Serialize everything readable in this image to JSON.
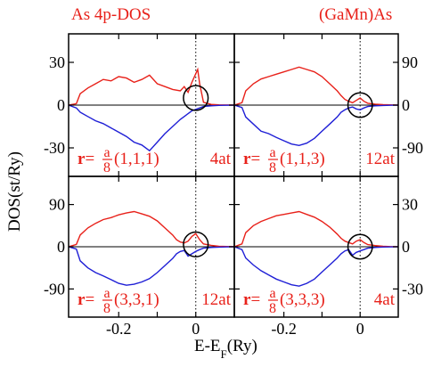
{
  "header": {
    "left_label": "As 4p-DOS",
    "right_label": "(GaMn)As"
  },
  "axes": {
    "xlabel_main": "E-E",
    "xlabel_sub": "F",
    "xlabel_unit": "(Ry)",
    "ylabel": "DOS(st/Ry)"
  },
  "colors": {
    "up": "#e8211a",
    "down": "#1f1fd6",
    "text": "#e8211a",
    "axis": "#000000"
  },
  "chart_data": {
    "type": "line",
    "xlim": [
      -0.33,
      0.1
    ],
    "xticks": [
      -0.2,
      -0.1,
      0
    ],
    "xtick_labels": [
      "-0.2",
      "-0.1",
      "0"
    ],
    "panels": [
      {
        "id": "tl",
        "yticks": [
          30,
          0,
          -30
        ],
        "ytick_labels": [
          "30",
          "0",
          "-30"
        ],
        "ylim": [
          -50,
          50
        ],
        "y_side": "left",
        "r_prefix": "r",
        "r_eq": "=",
        "r_num": "a",
        "r_den": "8",
        "r_vec": "(1,1,1)",
        "atoms": "4at",
        "circle": {
          "cx": 0.0,
          "cy": 5,
          "r": 0.032
        },
        "series": [
          {
            "spin": "up",
            "x": [
              -0.33,
              -0.31,
              -0.3,
              -0.28,
              -0.26,
              -0.24,
              -0.22,
              -0.2,
              -0.18,
              -0.16,
              -0.14,
              -0.12,
              -0.1,
              -0.08,
              -0.06,
              -0.04,
              -0.03,
              -0.02,
              -0.01,
              0.0,
              0.005,
              0.01,
              0.02,
              0.04,
              0.06,
              0.08,
              0.1
            ],
            "y": [
              0,
              1,
              8,
              12,
              15,
              18,
              17,
              20,
              19,
              16,
              18,
              21,
              15,
              13,
              11,
              10,
              13,
              9,
              16,
              22,
              25,
              15,
              2,
              0.5,
              0.2,
              0.1,
              0
            ]
          },
          {
            "spin": "down",
            "x": [
              -0.33,
              -0.31,
              -0.3,
              -0.28,
              -0.26,
              -0.24,
              -0.22,
              -0.2,
              -0.18,
              -0.16,
              -0.14,
              -0.12,
              -0.1,
              -0.08,
              -0.06,
              -0.04,
              -0.03,
              -0.02,
              -0.01,
              0.0,
              0.01,
              0.02,
              0.04,
              0.06,
              0.08,
              0.1
            ],
            "y": [
              0,
              -2,
              -5,
              -8,
              -11,
              -13,
              -16,
              -19,
              -22,
              -26,
              -28,
              -32,
              -26,
              -20,
              -15,
              -10,
              -8,
              -6,
              -4,
              -3,
              -2,
              -1,
              -0.5,
              -0.2,
              -0.1,
              0
            ]
          }
        ]
      },
      {
        "id": "tr",
        "yticks": [
          90,
          0,
          -90
        ],
        "ytick_labels": [
          "90",
          "0",
          "-90"
        ],
        "ylim": [
          -150,
          150
        ],
        "y_side": "right",
        "r_prefix": "r",
        "r_eq": "=",
        "r_num": "a",
        "r_den": "8",
        "r_vec": "(1,1,3)",
        "atoms": "12at",
        "circle": {
          "cx": 0.0,
          "cy": 0,
          "r": 0.032
        },
        "series": [
          {
            "spin": "up",
            "x": [
              -0.33,
              -0.31,
              -0.3,
              -0.28,
              -0.26,
              -0.24,
              -0.22,
              -0.2,
              -0.18,
              -0.16,
              -0.14,
              -0.12,
              -0.1,
              -0.08,
              -0.06,
              -0.05,
              -0.04,
              -0.03,
              -0.02,
              -0.01,
              0.0,
              0.01,
              0.02,
              0.04,
              0.06,
              0.08,
              0.1
            ],
            "y": [
              0,
              5,
              30,
              45,
              55,
              60,
              65,
              70,
              75,
              80,
              75,
              70,
              60,
              45,
              30,
              20,
              12,
              8,
              5,
              10,
              15,
              8,
              4,
              2,
              1,
              0.5,
              0
            ]
          },
          {
            "spin": "down",
            "x": [
              -0.33,
              -0.31,
              -0.3,
              -0.28,
              -0.26,
              -0.24,
              -0.22,
              -0.2,
              -0.18,
              -0.16,
              -0.14,
              -0.12,
              -0.1,
              -0.08,
              -0.06,
              -0.05,
              -0.04,
              -0.03,
              -0.02,
              -0.01,
              0.0,
              0.01,
              0.02,
              0.04,
              0.06,
              0.08,
              0.1
            ],
            "y": [
              0,
              -5,
              -25,
              -40,
              -55,
              -60,
              -68,
              -75,
              -82,
              -85,
              -80,
              -70,
              -55,
              -40,
              -25,
              -15,
              -10,
              -6,
              -4,
              -8,
              -10,
              -6,
              -3,
              -1.5,
              -0.8,
              -0.3,
              0
            ]
          }
        ]
      },
      {
        "id": "bl",
        "yticks": [
          90,
          0,
          -90
        ],
        "ytick_labels": [
          "90",
          "0",
          "-90"
        ],
        "ylim": [
          -150,
          150
        ],
        "y_side": "left",
        "r_prefix": "r",
        "r_eq": "=",
        "r_num": "a",
        "r_den": "8",
        "r_vec": "(3,3,1)",
        "atoms": "12at",
        "circle": {
          "cx": 0.0,
          "cy": 5,
          "r": 0.032
        },
        "series": [
          {
            "spin": "up",
            "x": [
              -0.33,
              -0.31,
              -0.3,
              -0.28,
              -0.26,
              -0.24,
              -0.22,
              -0.2,
              -0.18,
              -0.16,
              -0.14,
              -0.12,
              -0.1,
              -0.08,
              -0.06,
              -0.05,
              -0.04,
              -0.03,
              -0.02,
              -0.01,
              0.0,
              0.01,
              0.02,
              0.04,
              0.06,
              0.08,
              0.1
            ],
            "y": [
              0,
              5,
              25,
              40,
              50,
              58,
              62,
              68,
              72,
              75,
              70,
              65,
              55,
              40,
              25,
              15,
              10,
              8,
              12,
              22,
              28,
              15,
              6,
              3,
              1,
              0.5,
              0
            ]
          },
          {
            "spin": "down",
            "x": [
              -0.33,
              -0.31,
              -0.3,
              -0.28,
              -0.26,
              -0.24,
              -0.22,
              -0.2,
              -0.18,
              -0.16,
              -0.14,
              -0.12,
              -0.1,
              -0.08,
              -0.06,
              -0.05,
              -0.04,
              -0.03,
              -0.02,
              -0.01,
              0.0,
              0.01,
              0.02,
              0.04,
              0.06,
              0.08,
              0.1
            ],
            "y": [
              0,
              -5,
              -30,
              -45,
              -55,
              -62,
              -70,
              -78,
              -82,
              -80,
              -75,
              -68,
              -55,
              -40,
              -25,
              -15,
              -10,
              -8,
              -20,
              -15,
              -10,
              -6,
              -3,
              -1.5,
              -0.8,
              -0.3,
              0
            ]
          }
        ]
      },
      {
        "id": "br",
        "yticks": [
          30,
          0,
          -30
        ],
        "ytick_labels": [
          "30",
          "0",
          "-30"
        ],
        "ylim": [
          -50,
          50
        ],
        "y_side": "right",
        "r_prefix": "r",
        "r_eq": "=",
        "r_num": "a",
        "r_den": "8",
        "r_vec": "(3,3,3)",
        "atoms": "4at",
        "circle": {
          "cx": 0.0,
          "cy": 0,
          "r": 0.032
        },
        "series": [
          {
            "spin": "up",
            "x": [
              -0.33,
              -0.31,
              -0.3,
              -0.28,
              -0.26,
              -0.24,
              -0.22,
              -0.2,
              -0.18,
              -0.16,
              -0.14,
              -0.12,
              -0.1,
              -0.08,
              -0.06,
              -0.05,
              -0.04,
              -0.03,
              -0.02,
              -0.01,
              0.0,
              0.01,
              0.02,
              0.04,
              0.06,
              0.08,
              0.1
            ],
            "y": [
              0,
              2,
              10,
              15,
              18,
              20,
              22,
              23,
              24,
              25,
              23,
              21,
              18,
              14,
              9,
              6,
              4,
              3,
              2,
              4,
              5,
              3,
              1.5,
              0.8,
              0.3,
              0.1,
              0
            ]
          },
          {
            "spin": "down",
            "x": [
              -0.33,
              -0.31,
              -0.3,
              -0.28,
              -0.26,
              -0.24,
              -0.22,
              -0.2,
              -0.18,
              -0.16,
              -0.14,
              -0.12,
              -0.1,
              -0.08,
              -0.06,
              -0.05,
              -0.04,
              -0.03,
              -0.02,
              -0.01,
              0.0,
              0.01,
              0.02,
              0.04,
              0.06,
              0.08,
              0.1
            ],
            "y": [
              0,
              -2,
              -8,
              -13,
              -17,
              -20,
              -23,
              -25,
              -27,
              -28,
              -26,
              -23,
              -18,
              -13,
              -8,
              -5,
              -3,
              -2,
              -6,
              -4,
              -3,
              -2,
              -1,
              -0.5,
              -0.2,
              -0.1,
              0
            ]
          }
        ]
      }
    ]
  }
}
